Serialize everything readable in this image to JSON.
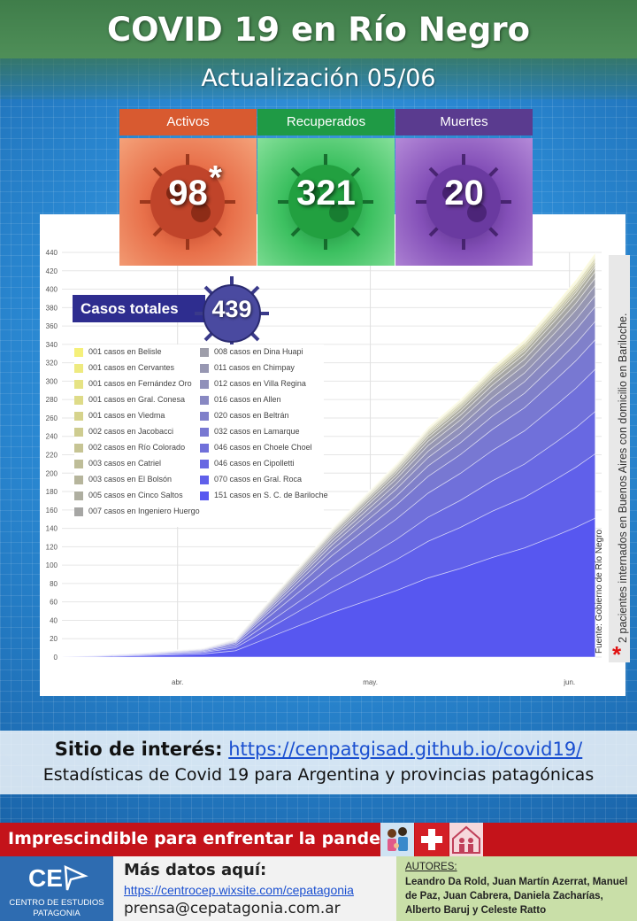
{
  "header": {
    "title": "COVID 19 en Río Negro",
    "subtitle": "Actualización  05/06"
  },
  "stats": [
    {
      "label": "Activos",
      "value": "98",
      "note": "*",
      "color": "#e06a3c"
    },
    {
      "label": "Recuperados",
      "value": "321",
      "color": "#2eae4e"
    },
    {
      "label": "Muertes",
      "value": "20",
      "color": "#7a3ea8"
    }
  ],
  "total": {
    "label": "Casos totales",
    "value": "439"
  },
  "chart_data": {
    "type": "area",
    "stacked": true,
    "y_ticks": [
      0,
      20,
      40,
      60,
      80,
      100,
      120,
      140,
      160,
      180,
      200,
      220,
      240,
      260,
      280,
      300,
      320,
      340,
      360,
      380,
      400,
      420,
      440
    ],
    "ylim": [
      0,
      440
    ],
    "x_tick_labels": [
      "abr.",
      "may.",
      "jun."
    ],
    "grid": true,
    "total_series": {
      "x": [
        "2020-03-14",
        "2020-03-27",
        "2020-04-05",
        "2020-04-10",
        "2020-04-15",
        "2020-04-20",
        "2020-04-25",
        "2020-04-30",
        "2020-05-05",
        "2020-05-10",
        "2020-05-15",
        "2020-05-20",
        "2020-05-25",
        "2020-05-30",
        "2020-06-02",
        "2020-06-05"
      ],
      "y": [
        0,
        5,
        10,
        20,
        60,
        100,
        140,
        175,
        210,
        250,
        280,
        315,
        345,
        385,
        410,
        439
      ]
    },
    "legend": [
      {
        "label": "001 casos en Belisle",
        "color": "#f5f07a"
      },
      {
        "label": "001 casos en Cervantes",
        "color": "#eeea80"
      },
      {
        "label": "001 casos en Fernández Oro",
        "color": "#e6e384"
      },
      {
        "label": "001 casos en Gral. Conesa",
        "color": "#dedb88"
      },
      {
        "label": "001 casos en Viedma",
        "color": "#d6d38c"
      },
      {
        "label": "002 casos en Jacobacci",
        "color": "#cecc90"
      },
      {
        "label": "002 casos en Río Colorado",
        "color": "#c6c494"
      },
      {
        "label": "003 casos en Catriel",
        "color": "#bebd98"
      },
      {
        "label": "003 casos en El Bolsón",
        "color": "#b6b59c"
      },
      {
        "label": "005 casos en Cinco Saltos",
        "color": "#aeaea0"
      },
      {
        "label": "007 casos en Ingeniero Huergo",
        "color": "#a6a6a4"
      },
      {
        "label": "008 casos en Dina Huapi",
        "color": "#9e9eaa"
      },
      {
        "label": "011 casos en Chimpay",
        "color": "#9797b2"
      },
      {
        "label": "012 casos en Villa Regina",
        "color": "#9090ba"
      },
      {
        "label": "016 casos en Allen",
        "color": "#8888c2"
      },
      {
        "label": "020 casos en Beltrán",
        "color": "#8080ca"
      },
      {
        "label": "032 casos en Lamarque",
        "color": "#7878d2"
      },
      {
        "label": "046 casos en Choele Choel",
        "color": "#7070da"
      },
      {
        "label": "046 casos en Cipolletti",
        "color": "#6868e2"
      },
      {
        "label": "070 casos en Gral. Roca",
        "color": "#6060ea"
      },
      {
        "label": "151 casos en S. C. de Bariloche",
        "color": "#5757f0"
      }
    ]
  },
  "source_note": "Fuente: Gobierno de Río Negro",
  "side_note": "2 pacientes  internados  en Buenos  Aires  con domicilio  en Bariloche.",
  "info": {
    "label": "Sitio de interés:",
    "url": "https://cenpatgisad.github.io/covid19/",
    "description": "Estadísticas de Covid 19 para Argentina y provincias patagónicas"
  },
  "pandemic_banner": "Imprescindible  para enfrentar  la pandemia:",
  "footer": {
    "logo_mark": "CE",
    "logo_line1": "CENTRO DE ESTUDIOS",
    "logo_line2": "PATAGONIA",
    "more_label": "Más datos aquí:",
    "more_url": "https://centrocep.wixsite.com/cepatagonia",
    "email": "prensa@cepatagonia.com.ar",
    "authors_label": "AUTORES:",
    "authors": "Leandro Da Rold, Juan Martín Azerrat, Manuel de Paz, Juan Cabrera, Daniela Zacharías, Alberto Baruj y Celeste Ratto"
  }
}
